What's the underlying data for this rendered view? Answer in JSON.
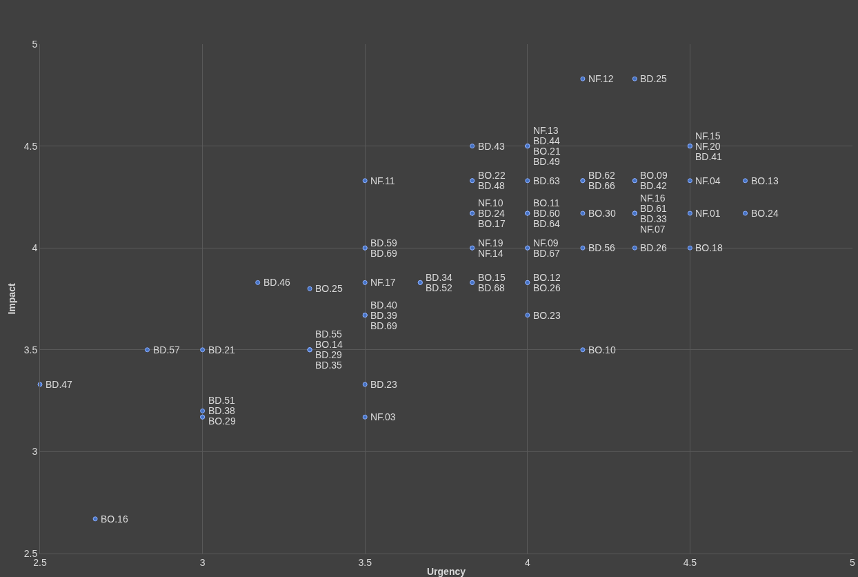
{
  "chart_data": {
    "type": "scatter",
    "xlabel": "Urgency",
    "ylabel": "Impact",
    "xlim": [
      2.5,
      5
    ],
    "xticks": [
      2.5,
      3,
      3.5,
      4,
      4.5,
      5
    ],
    "ylim": [
      2.5,
      5
    ],
    "yticks": [
      2.5,
      3,
      3.5,
      4,
      4.5,
      5
    ],
    "grid": true,
    "marker": "circle",
    "series": [
      {
        "color": "#4472c4",
        "x": [
          4.17,
          4.33,
          3.83,
          4,
          4,
          4,
          4,
          4.5,
          4.5,
          4.5,
          3.5,
          3.83,
          3.83,
          4,
          4.17,
          4.17,
          4.33,
          4.33,
          4.5,
          4.67,
          3.83,
          3.83,
          3.83,
          4,
          4,
          4,
          4.17,
          4.33,
          4.33,
          4.33,
          4.33,
          4.5,
          4.67,
          3.5,
          3.5,
          3.83,
          3.83,
          4,
          4,
          4.17,
          4.33,
          4.5,
          3.17,
          3.33,
          3.5,
          3.67,
          3.67,
          3.83,
          3.83,
          4,
          4,
          3.5,
          3.5,
          3.5,
          4,
          2.83,
          3,
          3.33,
          3.33,
          3.33,
          3.33,
          4.17,
          2.5,
          3.5,
          3,
          3,
          3,
          3.5,
          2.67
        ],
        "values": [
          4.83,
          4.83,
          4.5,
          4.5,
          4.5,
          4.5,
          4.5,
          4.5,
          4.5,
          4.5,
          4.33,
          4.33,
          4.33,
          4.33,
          4.33,
          4.33,
          4.33,
          4.33,
          4.33,
          4.33,
          4.17,
          4.17,
          4.17,
          4.17,
          4.17,
          4.17,
          4.17,
          4.17,
          4.17,
          4.17,
          4.17,
          4.17,
          4.17,
          4,
          4,
          4,
          4,
          4,
          4,
          4,
          4,
          4,
          3.83,
          3.8,
          3.83,
          3.83,
          3.83,
          3.83,
          3.83,
          3.83,
          3.83,
          3.67,
          3.67,
          3.67,
          3.67,
          3.5,
          3.5,
          3.5,
          3.5,
          3.5,
          3.5,
          3.5,
          3.33,
          3.33,
          3.2,
          3.17,
          3.17,
          3.17,
          2.67
        ],
        "value_labels": [
          "NF.12",
          "BD.25",
          "BD.43",
          "NF.13",
          "BD.44",
          "BO.21",
          "BD.49",
          "NF.15",
          "NF.20",
          "BD.41",
          "NF.11",
          "BO.22",
          "BD.48",
          "BD.63",
          "BD.62",
          "BD.66",
          "BO.09",
          "BD.42",
          "NF.04",
          "BO.13",
          "NF.10",
          "BD.24",
          "BO.17",
          "BO.11",
          "BD.60",
          "BD.64",
          "BO.30",
          "NF.16",
          "BD.61",
          "BD.33",
          "NF.07",
          "NF.01",
          "BO.24",
          "BD.59",
          "BD.69",
          "NF.19",
          "NF.14",
          "NF.09",
          "BD.67",
          "BD.56",
          "BD.26",
          "BO.18",
          "BD.46",
          "BO.25",
          "NF.17",
          "BD.34",
          "BD.52",
          "BO.15",
          "BD.68",
          "BO.12",
          "BO.26",
          "BD.40",
          "BD.39",
          "BD.69",
          "BO.23",
          "BD.57",
          "BD.21",
          "BD.55",
          "BO.14",
          "BD.29",
          "BD.35",
          "BO.10",
          "BD.47",
          "BD.23",
          "BD.51",
          "BD.38",
          "BO.29",
          "NF.03",
          "BO.16"
        ]
      }
    ]
  }
}
